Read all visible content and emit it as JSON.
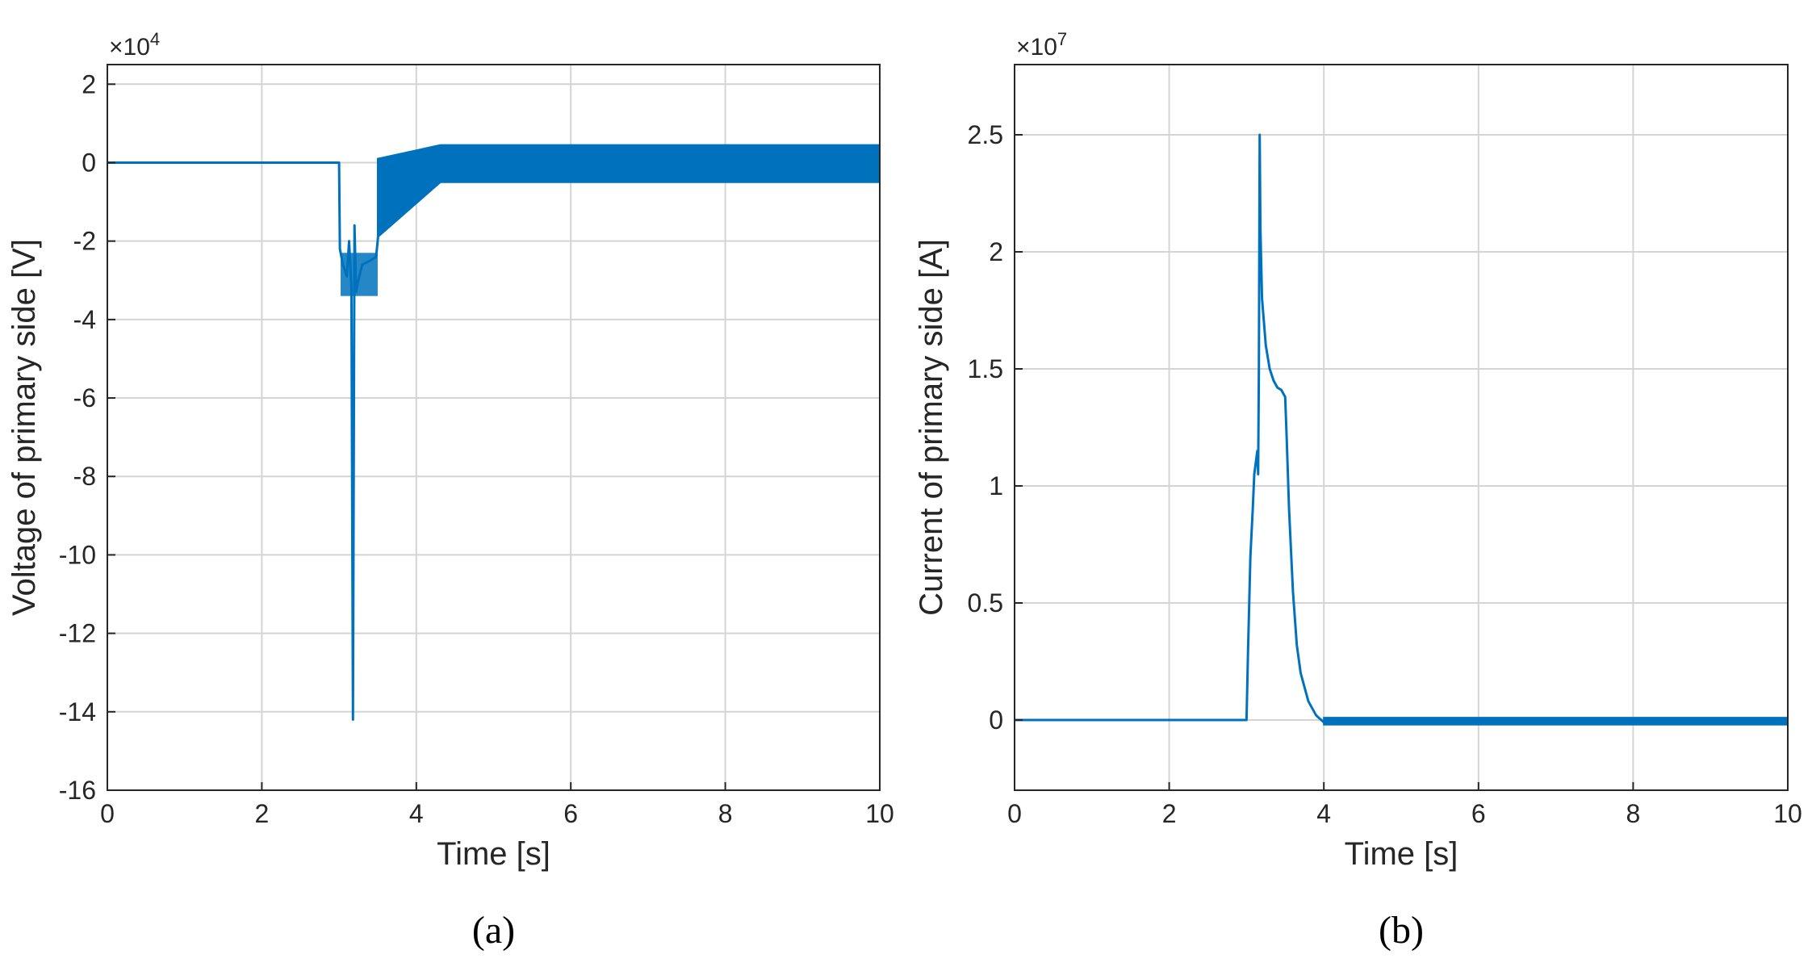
{
  "colors": {
    "line": "#0072BD",
    "grid": "#D4D4D4",
    "axis": "#262626",
    "background": "#FFFFFF"
  },
  "chart_data": [
    {
      "type": "line",
      "caption": "(a)",
      "xlabel": "Time [s]",
      "ylabel": "Voltage of primary side [V]",
      "y_exponent_label": "×10",
      "y_exponent_power": "4",
      "xlim": [
        0,
        10
      ],
      "ylim": [
        -16,
        2.5
      ],
      "xticks": [
        0,
        2,
        4,
        6,
        8,
        10
      ],
      "xtick_labels": [
        "0",
        "2",
        "4",
        "6",
        "8",
        "10"
      ],
      "yticks": [
        2,
        0,
        -2,
        -4,
        -6,
        -8,
        -10,
        -12,
        -14,
        -16
      ],
      "ytick_labels": [
        "2",
        "0",
        "-2",
        "-4",
        "-6",
        "-8",
        "-10",
        "-12",
        "-14",
        "-16"
      ],
      "grid": true,
      "series": [
        {
          "x": [
            0,
            3.0,
            3.01,
            3.05,
            3.1,
            3.13,
            3.16,
            3.18,
            3.2,
            3.22,
            3.25,
            3.3,
            3.4,
            3.48,
            3.5,
            3.55,
            3.6,
            3.7,
            3.8,
            4.0,
            10.0
          ],
          "y": [
            0,
            0,
            -2.2,
            -2.6,
            -2.9,
            -2.0,
            -3.2,
            -14.2,
            -1.6,
            -3.3,
            -3.0,
            -2.6,
            -2.5,
            -2.4,
            -2.0,
            -0.9,
            -0.3,
            0.1,
            0.2,
            0.2,
            0.2
          ]
        }
      ],
      "oscillation_band": {
        "x": [
          3.5,
          10
        ],
        "ymin": [
          -1.9,
          -0.5
        ],
        "ymax": [
          0.1,
          0.45
        ]
      },
      "fault_band": {
        "x": [
          3.02,
          3.5
        ],
        "ymin": -3.4,
        "ymax": -2.3
      }
    },
    {
      "type": "line",
      "caption": "(b)",
      "xlabel": "Time [s]",
      "ylabel": "Current of primary side [A]",
      "y_exponent_label": "×10",
      "y_exponent_power": "7",
      "xlim": [
        0,
        10
      ],
      "ylim": [
        -0.3,
        2.8
      ],
      "xticks": [
        0,
        2,
        4,
        6,
        8,
        10
      ],
      "xtick_labels": [
        "0",
        "2",
        "4",
        "6",
        "8",
        "10"
      ],
      "yticks": [
        2.5,
        2,
        1.5,
        1,
        0.5,
        0
      ],
      "ytick_labels": [
        "2.5",
        "2",
        "1.5",
        "1",
        "0.5",
        "0"
      ],
      "grid": true,
      "series": [
        {
          "x": [
            0,
            3.0,
            3.02,
            3.05,
            3.08,
            3.1,
            3.12,
            3.14,
            3.15,
            3.16,
            3.17,
            3.18,
            3.2,
            3.25,
            3.3,
            3.35,
            3.4,
            3.45,
            3.5,
            3.52,
            3.55,
            3.6,
            3.65,
            3.7,
            3.8,
            3.9,
            4.0,
            4.2,
            10.0
          ],
          "y": [
            0,
            0,
            0.3,
            0.7,
            0.9,
            1.05,
            1.1,
            1.15,
            1.05,
            1.5,
            2.5,
            2.1,
            1.8,
            1.6,
            1.5,
            1.45,
            1.42,
            1.41,
            1.38,
            1.2,
            0.9,
            0.55,
            0.32,
            0.2,
            0.08,
            0.02,
            -0.01,
            -0.01,
            -0.01
          ]
        }
      ],
      "oscillation_band": {
        "x": [
          4.0,
          10
        ],
        "ymin": [
          -0.02,
          -0.02
        ],
        "ymax": [
          0.01,
          0.01
        ]
      }
    }
  ]
}
